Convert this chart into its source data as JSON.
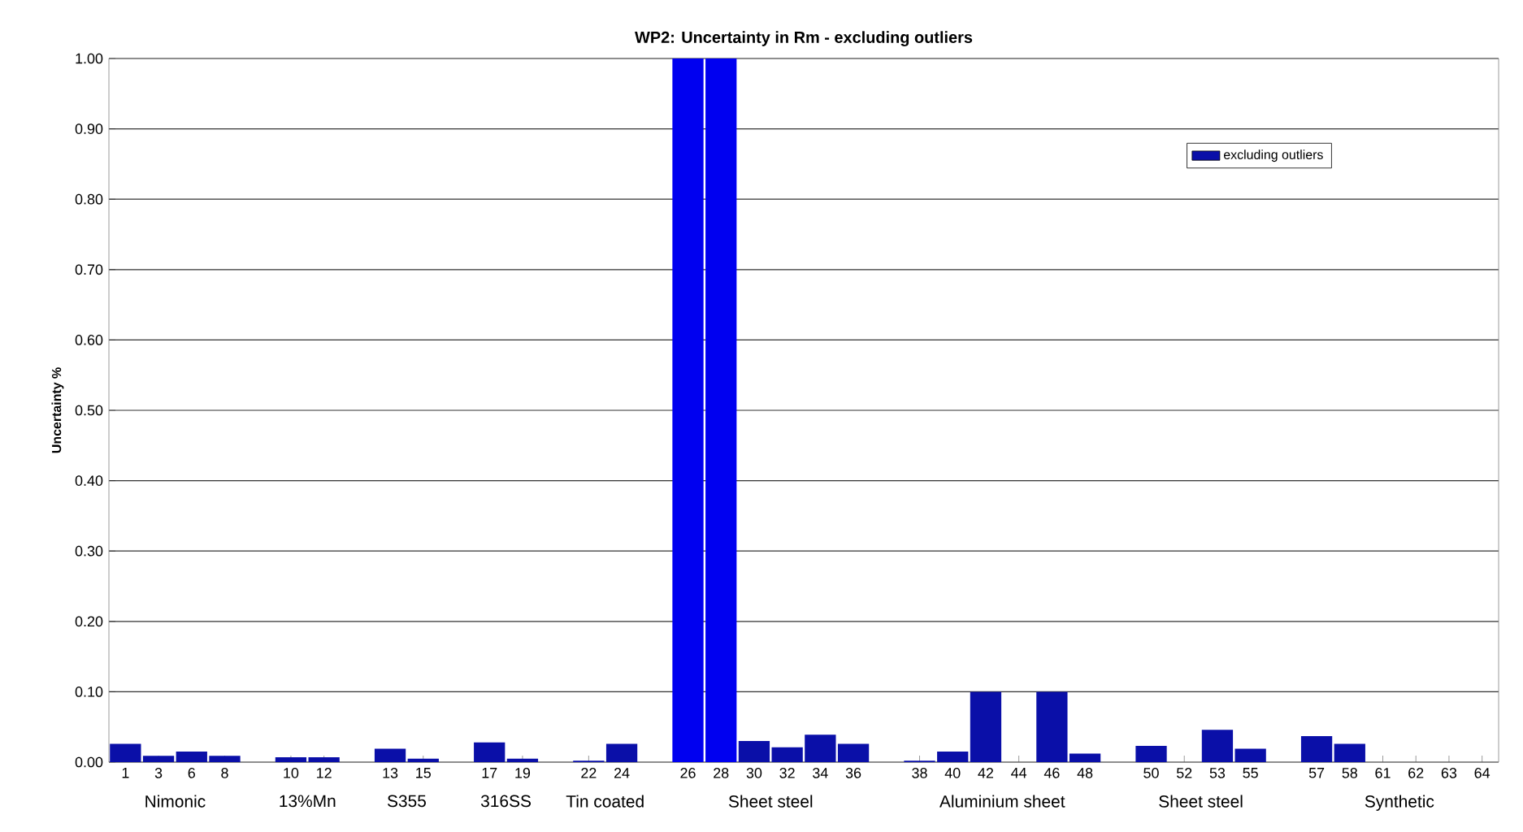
{
  "chart_data": {
    "type": "bar",
    "title": "WP2: Uncertainty in Rm - excluding outliers",
    "ylabel": "Uncertainty %",
    "categories": [
      "1",
      "3",
      "6",
      "8",
      null,
      "10",
      "12",
      null,
      "13",
      "15",
      null,
      "17",
      "19",
      null,
      "22",
      "24",
      null,
      "26",
      "28",
      "30",
      "32",
      "34",
      "36",
      null,
      "38",
      "40",
      "42",
      "44",
      "46",
      "48",
      null,
      "50",
      "52",
      "53",
      "55",
      null,
      "57",
      "58",
      "61",
      "62",
      "63",
      "64"
    ],
    "series": [
      {
        "name": "excluding outliers",
        "color": "#0a0fa8",
        "values": [
          0.026,
          0.009,
          0.015,
          0.009,
          null,
          0.007,
          0.007,
          null,
          0.019,
          0.005,
          null,
          0.028,
          0.005,
          null,
          0.002,
          0.026,
          null,
          1.0,
          1.0,
          0.03,
          0.021,
          0.039,
          0.026,
          null,
          0.002,
          0.015,
          0.1,
          0,
          0.1,
          0.012,
          null,
          0.023,
          0,
          0.046,
          0.019,
          null,
          0.037,
          0.026,
          0,
          0,
          0,
          0
        ],
        "colors": [
          "#0a0fa8",
          "#0a0fa8",
          "#0a0fa8",
          "#0a0fa8",
          null,
          "#0a0fa8",
          "#0a0fa8",
          null,
          "#0a0fa8",
          "#0a0fa8",
          null,
          "#0a0fa8",
          "#0a0fa8",
          null,
          "#0a0fa8",
          "#0a0fa8",
          null,
          "#0000f0",
          "#0000f0",
          "#0a0fa8",
          "#0a0fa8",
          "#0a0fa8",
          "#0a0fa8",
          null,
          "#0a0fa8",
          "#0a0fa8",
          "#0a0fa8",
          "#0a0fa8",
          "#0a0fa8",
          "#0a0fa8",
          null,
          "#0a0fa8",
          "#0a0fa8",
          "#0a0fa8",
          "#0a0fa8",
          null,
          "#0a0fa8",
          "#0a0fa8",
          "#0a0fa8",
          "#0a0fa8",
          "#0a0fa8",
          "#0a0fa8"
        ]
      }
    ],
    "annotations": [
      "Nimonic",
      "13%Mn",
      "S355",
      "316SS",
      "Tin coated",
      "Sheet steel",
      "Aluminium sheet",
      "Sheet steel",
      "Synthetic"
    ],
    "ylim": [
      0,
      1
    ],
    "yticks": [
      {
        "value": 0,
        "label": "0.00"
      },
      {
        "value": 0.1,
        "label": "0.10"
      },
      {
        "value": 0.2,
        "label": "0.20"
      },
      {
        "value": 0.3,
        "label": "0.30"
      },
      {
        "value": 0.4,
        "label": "0.40"
      },
      {
        "value": 0.5,
        "label": "0.50"
      },
      {
        "value": 0.6,
        "label": "0.60"
      },
      {
        "value": 0.7,
        "label": "0.70"
      },
      {
        "value": 0.8,
        "label": "0.80"
      },
      {
        "value": 0.9,
        "label": "0.90"
      },
      {
        "value": 1.0,
        "label": "1.00"
      }
    ],
    "grid": "y",
    "legend": "top right"
  }
}
